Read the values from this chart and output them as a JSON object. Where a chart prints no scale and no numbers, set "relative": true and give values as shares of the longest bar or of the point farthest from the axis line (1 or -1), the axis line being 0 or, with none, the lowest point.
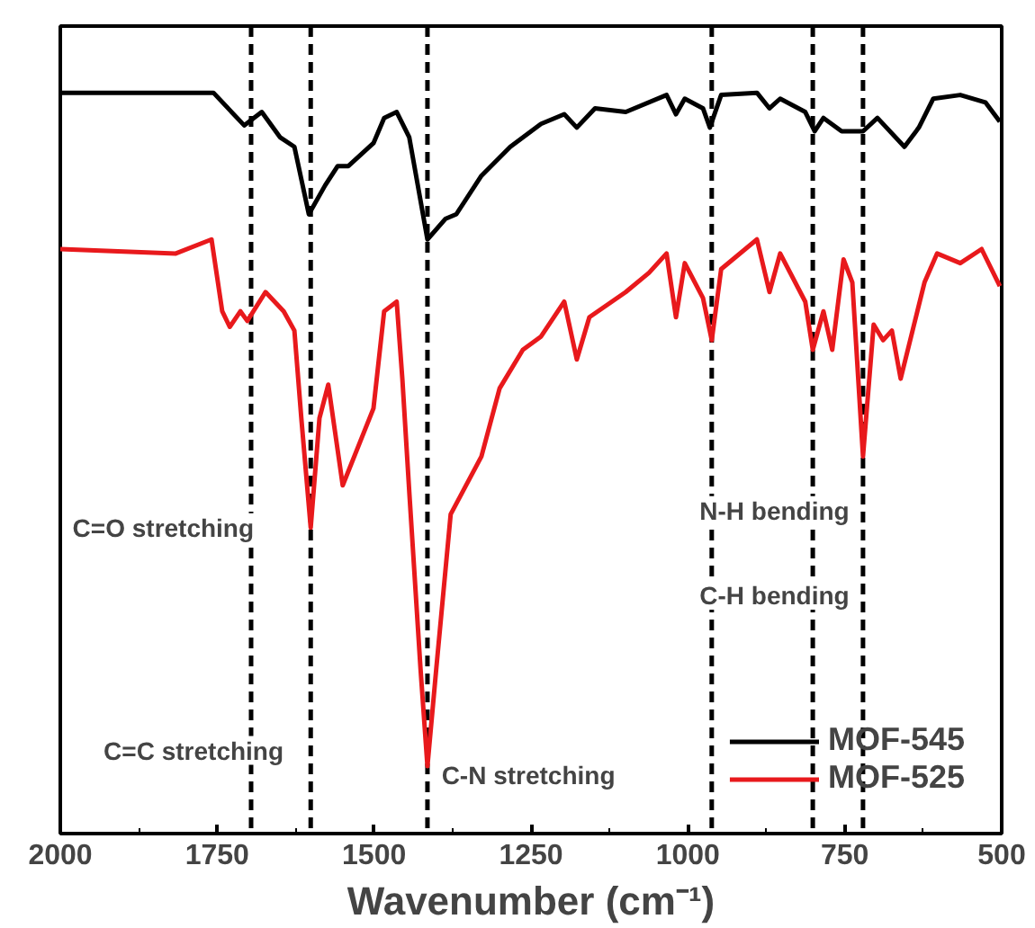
{
  "chart_data": {
    "type": "line",
    "relative": true,
    "xlabel": "Wavenumber (cm⁻¹)",
    "xlim": [
      2000,
      500
    ],
    "xticks": [
      2000,
      1750,
      1500,
      1250,
      1000,
      750,
      500
    ],
    "grid": false,
    "legend": "bottom right",
    "line_style": "solid",
    "marker": "none",
    "series": [
      {
        "name": "MOF-545",
        "color": "#000000",
        "x": [
          2000,
          1756,
          1707,
          1679,
          1650,
          1627,
          1604,
          1578,
          1558,
          1541,
          1501,
          1484,
          1464,
          1444,
          1415,
          1386,
          1369,
          1329,
          1283,
          1234,
          1197,
          1177,
          1148,
          1099,
          1034,
          1019,
          1005,
          976,
          965,
          947,
          890,
          870,
          853,
          813,
          798,
          784,
          755,
          721,
          698,
          655,
          632,
          609,
          566,
          526,
          503
        ],
        "values": [
          1.0,
          1.0,
          0.956,
          0.974,
          0.94,
          0.927,
          0.836,
          0.875,
          0.901,
          0.901,
          0.932,
          0.966,
          0.974,
          0.94,
          0.802,
          0.83,
          0.836,
          0.888,
          0.927,
          0.958,
          0.971,
          0.953,
          0.979,
          0.974,
          0.997,
          0.971,
          0.992,
          0.979,
          0.953,
          0.997,
          1.0,
          0.979,
          0.992,
          0.974,
          0.948,
          0.966,
          0.948,
          0.948,
          0.966,
          0.927,
          0.953,
          0.992,
          0.997,
          0.987,
          0.961
        ]
      },
      {
        "name": "MOF-525",
        "color": "#e8191c",
        "x": [
          2000,
          1816,
          1759,
          1742,
          1730,
          1713,
          1702,
          1673,
          1644,
          1627,
          1616,
          1601,
          1587,
          1573,
          1550,
          1501,
          1484,
          1464,
          1455,
          1444,
          1426,
          1415,
          1401,
          1378,
          1329,
          1300,
          1263,
          1234,
          1197,
          1177,
          1157,
          1099,
          1062,
          1034,
          1019,
          1005,
          976,
          962,
          947,
          890,
          870,
          853,
          813,
          801,
          784,
          770,
          752,
          738,
          721,
          704,
          689,
          675,
          661,
          623,
          603,
          566,
          532,
          503
        ],
        "values": [
          0.789,
          0.783,
          0.802,
          0.705,
          0.684,
          0.705,
          0.692,
          0.731,
          0.705,
          0.679,
          0.561,
          0.413,
          0.561,
          0.606,
          0.47,
          0.574,
          0.705,
          0.718,
          0.614,
          0.462,
          0.222,
          0.091,
          0.222,
          0.431,
          0.509,
          0.601,
          0.653,
          0.671,
          0.718,
          0.64,
          0.697,
          0.731,
          0.757,
          0.783,
          0.697,
          0.77,
          0.723,
          0.666,
          0.762,
          0.802,
          0.731,
          0.783,
          0.718,
          0.653,
          0.705,
          0.653,
          0.775,
          0.744,
          0.509,
          0.687,
          0.666,
          0.679,
          0.614,
          0.744,
          0.783,
          0.77,
          0.789,
          0.739
        ]
      }
    ],
    "ref_lines": [
      {
        "axis": "x",
        "value": 1696,
        "color": "#000000",
        "line_style": "dashed"
      },
      {
        "axis": "x",
        "value": 1601,
        "color": "#000000",
        "line_style": "dashed"
      },
      {
        "axis": "x",
        "value": 1415,
        "color": "#000000",
        "line_style": "dashed"
      },
      {
        "axis": "x",
        "value": 962,
        "color": "#000000",
        "line_style": "dashed"
      },
      {
        "axis": "x",
        "value": 801,
        "color": "#000000",
        "line_style": "dashed"
      },
      {
        "axis": "x",
        "value": 721,
        "color": "#000000",
        "line_style": "dashed"
      }
    ],
    "annotations": [
      "C=O stretching",
      "C=C stretching",
      "C-N stretching",
      "N-H bending",
      "C-H bending"
    ]
  }
}
